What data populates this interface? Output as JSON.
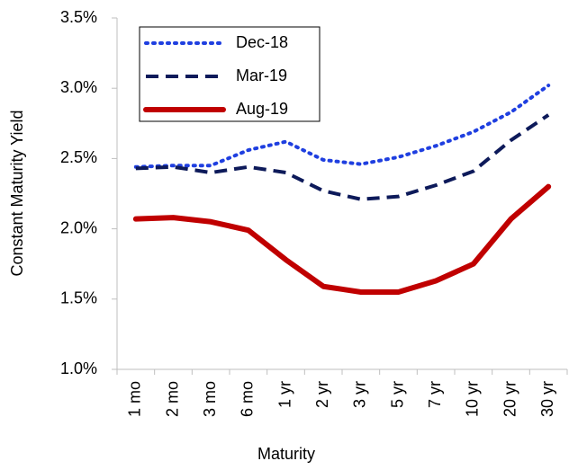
{
  "chart_data": {
    "type": "line",
    "ylabel": "Constant Maturity Yield",
    "xlabel": "Maturity",
    "categories": [
      "1 mo",
      "2 mo",
      "3 mo",
      "6 mo",
      "1 yr",
      "2 yr",
      "3 yr",
      "5 yr",
      "7 yr",
      "10 yr",
      "20 yr",
      "30 yr"
    ],
    "series": [
      {
        "name": "Dec-18",
        "color": "#1f3fe0",
        "style": "dotted",
        "values": [
          2.44,
          2.45,
          2.45,
          2.56,
          2.62,
          2.49,
          2.46,
          2.51,
          2.59,
          2.69,
          2.83,
          3.02
        ]
      },
      {
        "name": "Mar-19",
        "color": "#0d1a5a",
        "style": "dashed",
        "values": [
          2.43,
          2.44,
          2.4,
          2.44,
          2.4,
          2.27,
          2.21,
          2.23,
          2.31,
          2.41,
          2.63,
          2.81
        ]
      },
      {
        "name": "Aug-19",
        "color": "#c00000",
        "style": "solid",
        "values": [
          2.07,
          2.08,
          2.05,
          1.99,
          1.78,
          1.59,
          1.55,
          1.55,
          1.63,
          1.75,
          2.07,
          2.3
        ]
      }
    ],
    "ylim": [
      1.0,
      3.5
    ],
    "yticks": [
      {
        "value": 1.0,
        "label": "1.0%"
      },
      {
        "value": 1.5,
        "label": "1.5%"
      },
      {
        "value": 2.0,
        "label": "2.0%"
      },
      {
        "value": 2.5,
        "label": "2.5%"
      },
      {
        "value": 3.0,
        "label": "3.0%"
      },
      {
        "value": 3.5,
        "label": "3.5%"
      }
    ],
    "grid": false,
    "legend": "top-left"
  }
}
